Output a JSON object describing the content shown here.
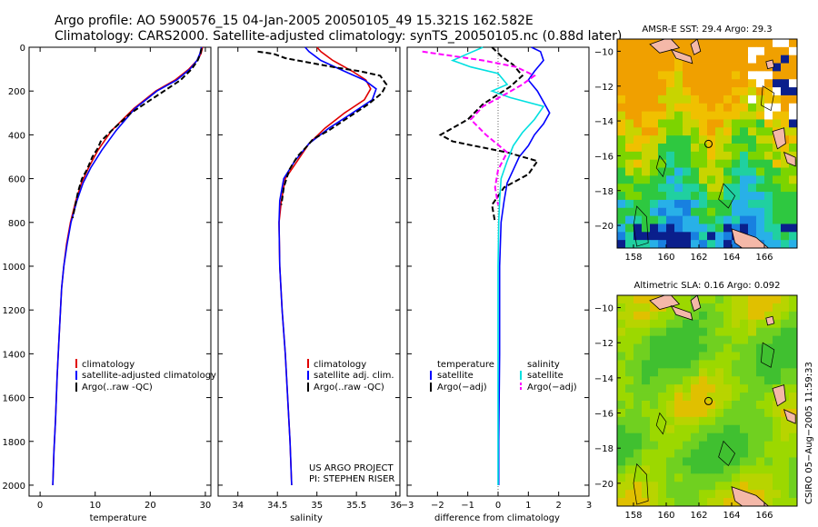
{
  "header": {
    "line1": "Argo profile: AO 5900576_15 04-Jan-2005 20050105_49 15.321S 162.582E",
    "line2": "Climatology: CARS2000. Satellite-adjusted climatology: synTS_20050105.nc (0.88d later)"
  },
  "colors": {
    "climatology": "#e00000",
    "satellite": "#0000ff",
    "argo": "#000000",
    "salinity_sat": "#00e0e0",
    "salinity_argo": "#ff00ff"
  },
  "chart_data": [
    {
      "type": "line",
      "id": "temperature",
      "xlabel": "temperature",
      "xlim": [
        -2,
        31
      ],
      "ylim": [
        0,
        2050
      ],
      "y_inverted": true,
      "xticks": [
        0,
        10,
        20,
        30
      ],
      "xticklabels": [
        "0",
        "10",
        "20",
        "30"
      ],
      "yticks": [
        0,
        200,
        400,
        600,
        800,
        1000,
        1200,
        1400,
        1600,
        1800,
        2000
      ],
      "yticklabels": [
        "0",
        "200",
        "400",
        "600",
        "800",
        "1000",
        "1200",
        "1400",
        "1600",
        "1800",
        "2000"
      ],
      "legend": {
        "position": "lower-middle",
        "items": [
          "climatology",
          "satellite-adjusted climatology",
          "Argo(..raw -QC)"
        ]
      },
      "series": [
        {
          "name": "climatology",
          "style": "solid",
          "color": "#e00000",
          "x": [
            29.5,
            29.2,
            28.5,
            27,
            24.5,
            21,
            17,
            13,
            10.5,
            8.8,
            7.5,
            6.5,
            5.5,
            4.8,
            4.3,
            3.9,
            3.5,
            3.1,
            2.8,
            2.5,
            2.3
          ],
          "y": [
            0,
            30,
            60,
            100,
            150,
            200,
            280,
            380,
            470,
            550,
            620,
            700,
            800,
            900,
            1000,
            1100,
            1300,
            1500,
            1700,
            1850,
            2000
          ]
        },
        {
          "name": "satellite-adjusted climatology",
          "style": "solid",
          "color": "#0000ff",
          "x": [
            29.3,
            29,
            28.5,
            27.2,
            24.8,
            21.2,
            17.2,
            13.8,
            11.2,
            9.2,
            7.8,
            6.7,
            5.6,
            4.9,
            4.3,
            3.9,
            3.5,
            3.1,
            2.8,
            2.5,
            2.3
          ],
          "y": [
            0,
            30,
            60,
            100,
            150,
            200,
            280,
            380,
            470,
            550,
            620,
            700,
            800,
            900,
            1000,
            1100,
            1300,
            1500,
            1700,
            1850,
            2000
          ]
        },
        {
          "name": "Argo(..raw -QC)",
          "style": "dashed",
          "color": "#000000",
          "x": [
            29.3,
            29.1,
            28.6,
            27.5,
            25.5,
            22.5,
            19.5,
            16.5,
            13,
            11,
            10.5,
            9.5,
            8.5,
            7.6,
            6.9,
            6.4,
            5.9
          ],
          "y": [
            5,
            30,
            60,
            100,
            150,
            200,
            250,
            300,
            380,
            430,
            460,
            500,
            560,
            600,
            660,
            720,
            780
          ]
        }
      ]
    },
    {
      "type": "line",
      "id": "salinity",
      "xlabel": "salinity",
      "xlim": [
        33.75,
        36.05
      ],
      "ylim": [
        0,
        2050
      ],
      "y_inverted": true,
      "xticks": [
        34,
        34.5,
        35,
        35.5,
        36
      ],
      "xticklabels": [
        "34",
        "34.5",
        "35",
        "35.5",
        "36"
      ],
      "legend": {
        "position": "lower-middle",
        "items": [
          "climatology",
          "satellite adj. clim.",
          "Argo(..raw -QC)"
        ]
      },
      "annotation": [
        "US ARGO PROJECT",
        "PI: STEPHEN RISER"
      ],
      "series": [
        {
          "name": "climatology",
          "style": "solid",
          "color": "#e00000",
          "x": [
            35,
            35.05,
            35.2,
            35.45,
            35.62,
            35.68,
            35.6,
            35.35,
            35.1,
            34.9,
            34.75,
            34.6,
            34.55,
            34.52,
            34.53,
            34.56,
            34.6,
            34.63,
            34.66,
            34.68
          ],
          "y": [
            0,
            20,
            60,
            110,
            150,
            190,
            240,
            300,
            370,
            440,
            520,
            600,
            700,
            800,
            1000,
            1200,
            1400,
            1600,
            1800,
            2000
          ]
        },
        {
          "name": "satellite adj. clim.",
          "style": "solid",
          "color": "#0000ff",
          "x": [
            34.85,
            34.9,
            35.05,
            35.35,
            35.6,
            35.75,
            35.7,
            35.45,
            35.15,
            34.9,
            34.72,
            34.58,
            34.53,
            34.52,
            34.53,
            34.56,
            34.6,
            34.63,
            34.66,
            34.68
          ],
          "y": [
            0,
            20,
            60,
            110,
            150,
            190,
            240,
            300,
            370,
            440,
            520,
            600,
            700,
            800,
            1000,
            1200,
            1400,
            1600,
            1800,
            2000
          ]
        },
        {
          "name": "Argo(..raw -QC)",
          "style": "dashed",
          "color": "#000000",
          "x": [
            34.25,
            34.45,
            34.6,
            35.2,
            35.55,
            35.8,
            35.88,
            35.82,
            35.65,
            35.4,
            35.15,
            34.95,
            34.88,
            34.75,
            34.65,
            34.58,
            34.55
          ],
          "y": [
            20,
            30,
            50,
            90,
            110,
            130,
            170,
            210,
            260,
            320,
            380,
            420,
            450,
            500,
            560,
            640,
            720
          ]
        }
      ]
    },
    {
      "type": "line",
      "id": "difference",
      "xlabel": "difference from climatology",
      "xlim": [
        -3,
        3
      ],
      "ylim": [
        0,
        2050
      ],
      "y_inverted": true,
      "xticks": [
        -3,
        -2,
        -1,
        0,
        1,
        2,
        3
      ],
      "xticklabels": [
        "−3",
        "−2",
        "−1",
        "0",
        "1",
        "2",
        "3"
      ],
      "legend_left": {
        "title": "temperature",
        "items": [
          "satellite",
          "Argo(−adj)"
        ]
      },
      "legend_right": {
        "title": "salinity",
        "items": [
          "satellite",
          "Argo(−adj)"
        ]
      },
      "series": [
        {
          "name": "temperature satellite",
          "style": "solid",
          "color": "#0000ff",
          "x": [
            1.1,
            1.4,
            1.5,
            1.2,
            1.0,
            1.3,
            1.5,
            1.7,
            1.5,
            1.2,
            1.0,
            0.7,
            0.5,
            0.3,
            0.2,
            0.1,
            0.05,
            0.05,
            0.02,
            0.02
          ],
          "y": [
            0,
            20,
            60,
            110,
            150,
            200,
            250,
            300,
            350,
            400,
            450,
            500,
            560,
            620,
            700,
            800,
            1000,
            1400,
            1800,
            2000
          ]
        },
        {
          "name": "temperature Argo(−adj)",
          "style": "dashed",
          "color": "#000000",
          "x": [
            -0.2,
            0.1,
            0.5,
            0.8,
            0.4,
            -0.5,
            -1.0,
            -1.9,
            -1.5,
            -0.8,
            0.3,
            1.3,
            1.0,
            0.2,
            -0.2,
            -0.1
          ],
          "y": [
            0,
            40,
            80,
            130,
            180,
            260,
            330,
            400,
            430,
            450,
            480,
            520,
            580,
            640,
            720,
            800
          ]
        },
        {
          "name": "salinity satellite",
          "style": "solid",
          "color": "#00e0e0",
          "x": [
            -0.5,
            -1.0,
            -1.5,
            -0.9,
            0.0,
            0.3,
            -0.2,
            0.4,
            1.5,
            1.2,
            0.8,
            0.5,
            0.3,
            0.1,
            0.05,
            0.02,
            0.0,
            0.0,
            0.0
          ],
          "y": [
            0,
            30,
            60,
            90,
            120,
            170,
            200,
            230,
            270,
            330,
            390,
            450,
            520,
            600,
            700,
            800,
            1000,
            1500,
            2000
          ]
        },
        {
          "name": "salinity Argo(−adj)",
          "style": "dashed",
          "color": "#ff00ff",
          "x": [
            -2.5,
            -1.5,
            -0.5,
            0.6,
            1.2,
            0.8,
            0.3,
            -0.5,
            -0.9,
            -0.4,
            0.3,
            0.0,
            -0.1,
            0.0
          ],
          "y": [
            20,
            40,
            60,
            90,
            130,
            170,
            210,
            270,
            330,
            400,
            480,
            560,
            640,
            720
          ]
        }
      ]
    },
    {
      "type": "heatmap",
      "id": "sst-map",
      "title": "AMSR-E SST: 29.4  Argo: 29.3",
      "xlim": [
        157,
        168
      ],
      "ylim": [
        -21.3,
        -9.3
      ],
      "xticks": [
        158,
        160,
        162,
        164,
        166
      ],
      "xticklabels": [
        "158",
        "160",
        "162",
        "164",
        "166"
      ],
      "yticks": [
        -10,
        -12,
        -14,
        -16,
        -18,
        -20
      ],
      "yticklabels": [
        "−10",
        "−12",
        "−14",
        "−16",
        "−18",
        "−20"
      ],
      "marker": {
        "lon": 162.582,
        "lat": -15.321
      }
    },
    {
      "type": "heatmap",
      "id": "sla-map",
      "title": "Altimetric SLA: 0.16  Argo: 0.092",
      "xlim": [
        157,
        168
      ],
      "ylim": [
        -21.3,
        -9.3
      ],
      "xticks": [
        158,
        160,
        162,
        164,
        166
      ],
      "xticklabels": [
        "158",
        "160",
        "162",
        "164",
        "166"
      ],
      "yticks": [
        -10,
        -12,
        -14,
        -16,
        -18,
        -20
      ],
      "yticklabels": [
        "−10",
        "−12",
        "−14",
        "−16",
        "−18",
        "−20"
      ],
      "marker": {
        "lon": 162.582,
        "lat": -15.321
      }
    }
  ],
  "side_label": "CSIRO 05−Aug−2005 11:59:33"
}
